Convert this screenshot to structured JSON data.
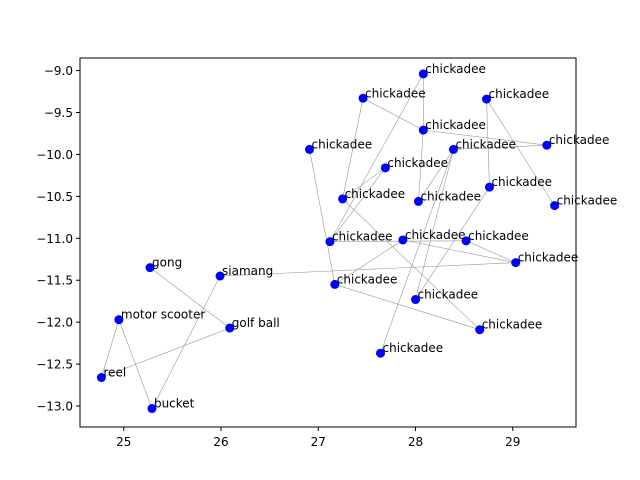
{
  "chart_data": {
    "type": "scatter",
    "title": "",
    "xlabel": "",
    "ylabel": "",
    "xlim": [
      24.55,
      29.65
    ],
    "ylim": [
      -13.25,
      -8.85
    ],
    "xticks": [
      25,
      26,
      27,
      28,
      29
    ],
    "yticks": [
      -9.0,
      -9.5,
      -10.0,
      -10.5,
      -11.0,
      -11.5,
      -12.0,
      -12.5,
      -13.0
    ],
    "xtick_labels": [
      "25",
      "26",
      "27",
      "28",
      "29"
    ],
    "ytick_labels": [
      "−9.0",
      "−9.5",
      "−10.0",
      "−10.5",
      "−11.0",
      "−11.5",
      "−12.0",
      "−12.5",
      "−13.0"
    ],
    "point_color": "#0000ff",
    "edge_color": "#999999",
    "grid": false,
    "points": [
      {
        "label": "chickadee",
        "x": 28.08,
        "y": -9.04
      },
      {
        "label": "chickadee",
        "x": 27.46,
        "y": -9.33
      },
      {
        "label": "chickadee",
        "x": 28.73,
        "y": -9.34
      },
      {
        "label": "chickadee",
        "x": 28.08,
        "y": -9.71
      },
      {
        "label": "chickadee",
        "x": 26.91,
        "y": -9.94
      },
      {
        "label": "chickadee",
        "x": 28.39,
        "y": -9.94
      },
      {
        "label": "chickadee",
        "x": 29.35,
        "y": -9.89
      },
      {
        "label": "chickadee",
        "x": 27.69,
        "y": -10.16
      },
      {
        "label": "chickadee",
        "x": 27.25,
        "y": -10.53
      },
      {
        "label": "chickadee",
        "x": 28.03,
        "y": -10.56
      },
      {
        "label": "chickadee",
        "x": 28.76,
        "y": -10.39
      },
      {
        "label": "chickadee",
        "x": 29.43,
        "y": -10.61
      },
      {
        "label": "chickadee",
        "x": 27.12,
        "y": -11.04
      },
      {
        "label": "chickadee",
        "x": 27.87,
        "y": -11.02
      },
      {
        "label": "chickadee",
        "x": 28.52,
        "y": -11.03
      },
      {
        "label": "chickadee",
        "x": 29.03,
        "y": -11.29
      },
      {
        "label": "chickadee",
        "x": 27.17,
        "y": -11.55
      },
      {
        "label": "chickadee",
        "x": 28.0,
        "y": -11.73
      },
      {
        "label": "chickadee",
        "x": 28.66,
        "y": -12.09
      },
      {
        "label": "chickadee",
        "x": 27.64,
        "y": -12.37
      },
      {
        "label": "gong",
        "x": 25.27,
        "y": -11.35
      },
      {
        "label": "siamang",
        "x": 25.99,
        "y": -11.45
      },
      {
        "label": "motor scooter",
        "x": 24.95,
        "y": -11.97
      },
      {
        "label": "golf ball",
        "x": 26.09,
        "y": -12.07
      },
      {
        "label": "reel",
        "x": 24.77,
        "y": -12.66
      },
      {
        "label": "bucket",
        "x": 25.29,
        "y": -13.03
      }
    ],
    "edges": [
      [
        0,
        3
      ],
      [
        0,
        12
      ],
      [
        1,
        3
      ],
      [
        1,
        8
      ],
      [
        2,
        10
      ],
      [
        2,
        11
      ],
      [
        3,
        6
      ],
      [
        3,
        9
      ],
      [
        4,
        16
      ],
      [
        5,
        17
      ],
      [
        5,
        19
      ],
      [
        6,
        5
      ],
      [
        7,
        8
      ],
      [
        8,
        18
      ],
      [
        9,
        5
      ],
      [
        10,
        17
      ],
      [
        12,
        7
      ],
      [
        12,
        14
      ],
      [
        13,
        15
      ],
      [
        14,
        15
      ],
      [
        16,
        13
      ],
      [
        16,
        18
      ],
      [
        20,
        23
      ],
      [
        21,
        15
      ],
      [
        21,
        25
      ],
      [
        22,
        24
      ],
      [
        22,
        25
      ],
      [
        24,
        23
      ]
    ]
  }
}
